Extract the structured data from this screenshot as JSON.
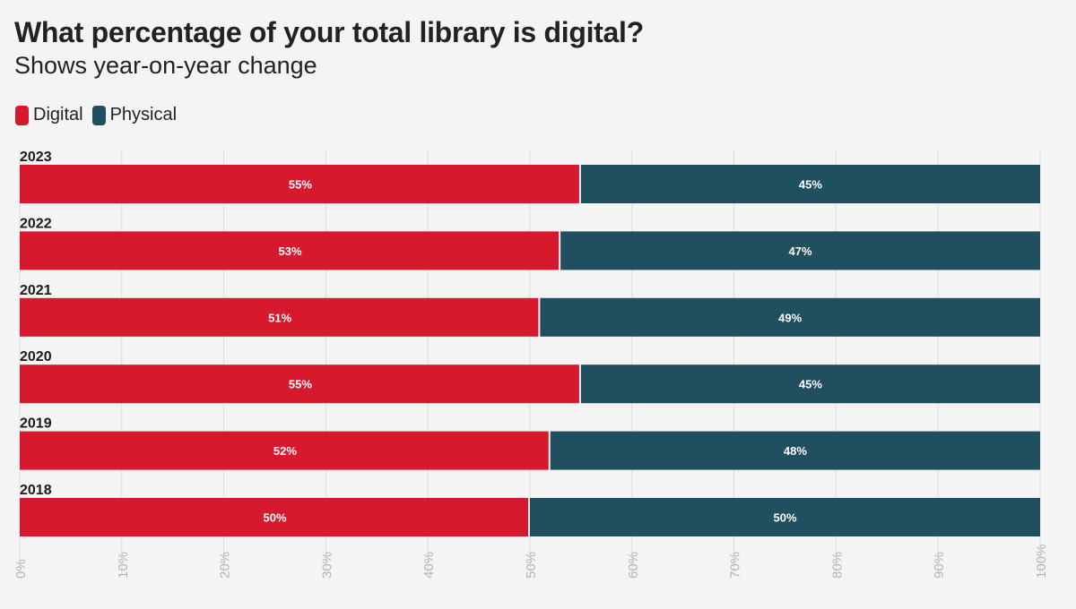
{
  "chart_data": {
    "type": "bar",
    "orientation": "horizontal",
    "stacked": true,
    "title": "What percentage of your total library is digital?",
    "subtitle": "Shows year-on-year change",
    "categories": [
      "2023",
      "2022",
      "2021",
      "2020",
      "2019",
      "2018"
    ],
    "series": [
      {
        "name": "Digital",
        "color": "#d7192d",
        "values": [
          55,
          53,
          51,
          55,
          52,
          50
        ],
        "labels": [
          "55%",
          "53%",
          "51%",
          "55%",
          "52%",
          "50%"
        ]
      },
      {
        "name": "Physical",
        "color": "#204f5f",
        "values": [
          45,
          47,
          49,
          45,
          48,
          50
        ],
        "labels": [
          "45%",
          "47%",
          "49%",
          "45%",
          "48%",
          "50%"
        ]
      }
    ],
    "xlim": [
      0,
      100
    ],
    "xticks": [
      "0%",
      "10%",
      "20%",
      "30%",
      "40%",
      "50%",
      "60%",
      "70%",
      "80%",
      "90%",
      "100%"
    ],
    "grid": true,
    "legend": "top-left"
  }
}
